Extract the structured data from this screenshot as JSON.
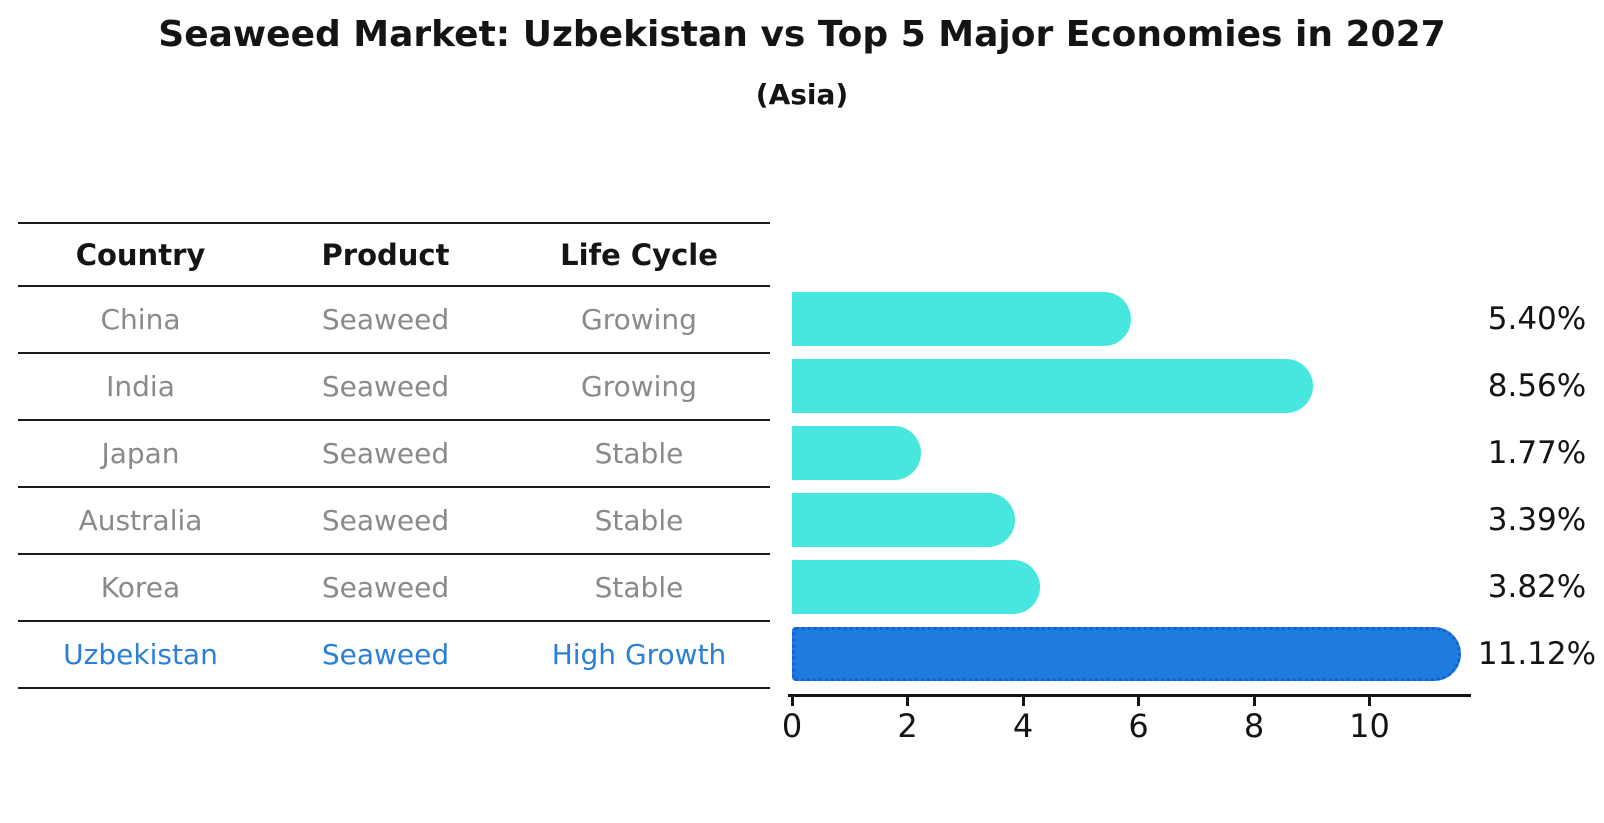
{
  "header": {
    "title": "Seaweed Market: Uzbekistan vs Top 5 Major Economies in 2027",
    "subtitle": "(Asia)"
  },
  "table": {
    "columns": [
      "Country",
      "Product",
      "Life Cycle"
    ]
  },
  "chart_data": {
    "type": "bar",
    "orientation": "horizontal",
    "title": "Seaweed Market: Uzbekistan vs Top 5 Major Economies in 2027",
    "subtitle": "(Asia)",
    "categories": [
      "China",
      "India",
      "Japan",
      "Australia",
      "Korea",
      "Uzbekistan"
    ],
    "values": [
      5.4,
      8.56,
      1.77,
      3.39,
      3.82,
      11.12
    ],
    "value_labels": [
      "5.40%",
      "8.56%",
      "1.77%",
      "3.39%",
      "3.82%",
      "11.12%"
    ],
    "rows": [
      {
        "country": "China",
        "product": "Seaweed",
        "life_cycle": "Growing",
        "value": 5.4,
        "label": "5.40%",
        "highlight": false
      },
      {
        "country": "India",
        "product": "Seaweed",
        "life_cycle": "Growing",
        "value": 8.56,
        "label": "8.56%",
        "highlight": false
      },
      {
        "country": "Japan",
        "product": "Seaweed",
        "life_cycle": "Stable",
        "value": 1.77,
        "label": "1.77%",
        "highlight": false
      },
      {
        "country": "Australia",
        "product": "Seaweed",
        "life_cycle": "Stable",
        "value": 3.39,
        "label": "3.39%",
        "highlight": false
      },
      {
        "country": "Korea",
        "product": "Seaweed",
        "life_cycle": "Stable",
        "value": 3.82,
        "label": "3.82%",
        "highlight": false
      },
      {
        "country": "Uzbekistan",
        "product": "Seaweed",
        "life_cycle": "High Growth",
        "value": 11.12,
        "label": "11.12%",
        "highlight": true
      }
    ],
    "x_ticks": [
      "0",
      "2",
      "4",
      "6",
      "8",
      "10"
    ],
    "xlim": [
      0,
      11.8
    ],
    "grid": false,
    "legend": "none",
    "colors": {
      "bar": "#47e7e0",
      "highlight_bar": "#1e7ce0",
      "highlight_border": "#1261cd",
      "highlight_text": "#2b7fd5",
      "row_text": "#8a8a8a",
      "header_text": "#141414"
    }
  }
}
